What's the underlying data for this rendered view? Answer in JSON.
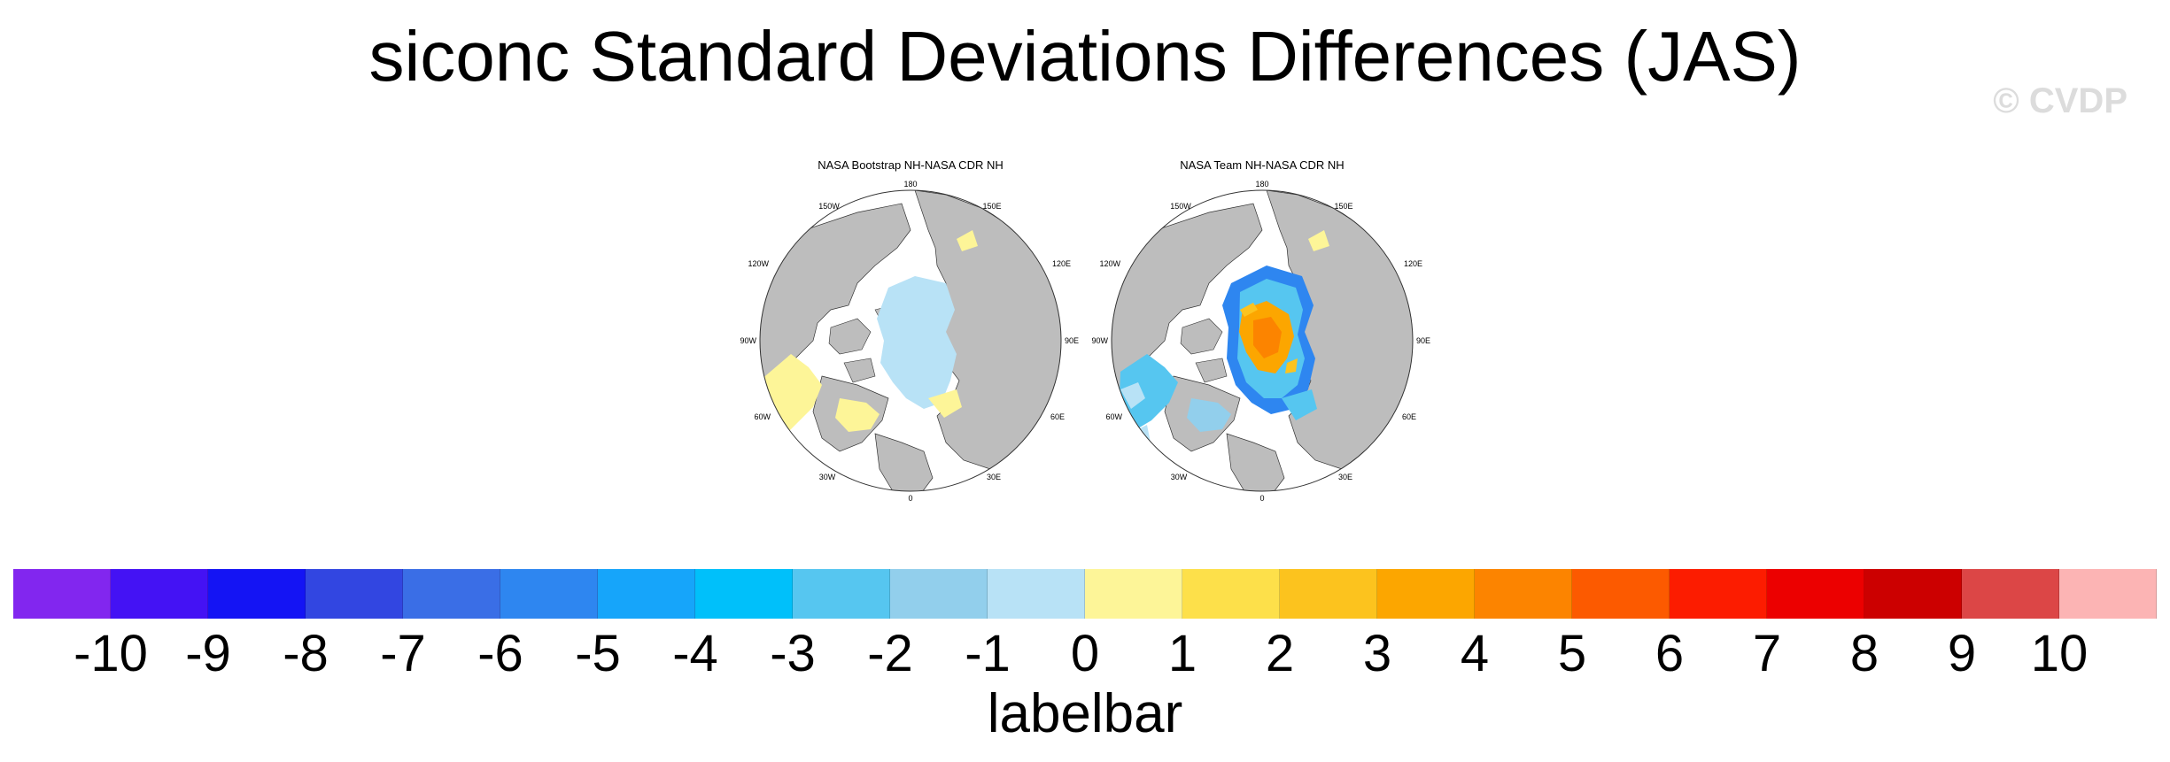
{
  "title": "siconc Standard Deviations Differences (JAS)",
  "copyright": "© CVDP",
  "panels": [
    {
      "title": "NASA Bootstrap NH-NASA CDR NH"
    },
    {
      "title": "NASA Team NH-NASA CDR NH"
    }
  ],
  "longitude_labels": [
    "180",
    "150E",
    "120E",
    "90E",
    "60E",
    "30E",
    "0",
    "30W",
    "60W",
    "90W",
    "120W",
    "150W"
  ],
  "colors": {
    "land": "#bdbdbd",
    "ocean": "#ffffff"
  },
  "labelbar": {
    "title": "labelbar",
    "colors": [
      "#8226ef",
      "#4412f4",
      "#1414f4",
      "#3246e1",
      "#3a6ee6",
      "#2e86f0",
      "#16a5fa",
      "#00c0fa",
      "#56c6f0",
      "#92cfec",
      "#b8e2f6",
      "#fdf598",
      "#fde04a",
      "#fcc31e",
      "#fca600",
      "#fc8400",
      "#fc5a00",
      "#fc1c00",
      "#ec0000",
      "#cc0000",
      "#dc4646",
      "#fcb4b4"
    ],
    "ticks": [
      "-10",
      "-9",
      "-8",
      "-7",
      "-6",
      "-5",
      "-4",
      "-3",
      "-2",
      "-1",
      "0",
      "1",
      "2",
      "3",
      "4",
      "5",
      "6",
      "7",
      "8",
      "9",
      "10"
    ]
  }
}
